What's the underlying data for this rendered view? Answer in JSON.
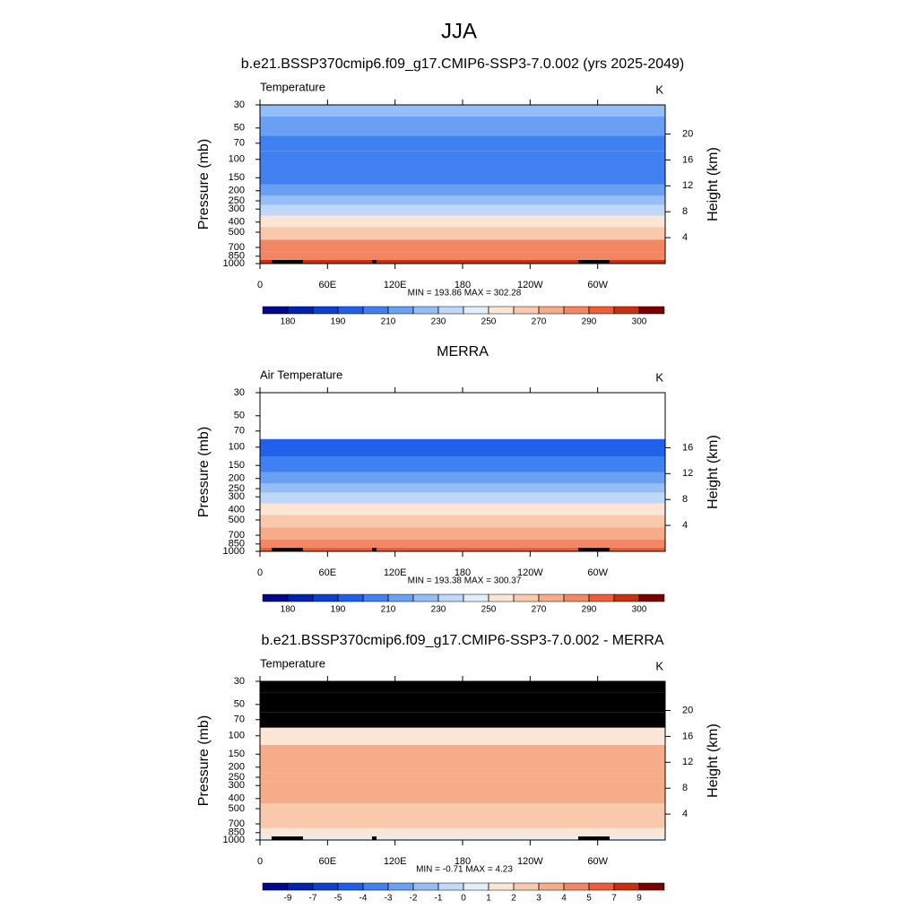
{
  "title": "JJA",
  "chart_data": [
    {
      "type": "contour",
      "title": "b.e21.BSSP370cmip6.f09_g17.CMIP6-SSP3-7.0.002 (yrs 2025-2049)",
      "left_label": "Temperature",
      "unit_label": "K",
      "y_label": "Pressure (mb)",
      "y2_label": "Height (km)",
      "log_scale": true,
      "ylim": [
        30,
        1000
      ],
      "yticks": [
        30,
        50,
        70,
        100,
        150,
        200,
        250,
        300,
        400,
        500,
        700,
        850,
        1000
      ],
      "y2lim": [
        0,
        24.5
      ],
      "y2ticks": [
        4,
        8,
        12,
        16,
        20
      ],
      "xlim": [
        0,
        360
      ],
      "xticks": [
        0,
        {
          "value": 60,
          "label": "60E"
        },
        {
          "value": 120,
          "label": "120E"
        },
        180,
        {
          "value": 240,
          "label": "120W"
        },
        {
          "value": 300,
          "label": "60W"
        }
      ],
      "stats_label": "MIN = 193.86  MAX = 302.28",
      "missing_color": "#ffffff",
      "pressure": [
        30,
        50,
        70,
        100,
        150,
        200,
        250,
        300,
        400,
        500,
        700,
        850,
        1000
      ],
      "values": [
        225,
        215,
        205,
        200,
        208,
        218,
        227,
        237,
        252,
        263,
        280,
        288,
        296
      ],
      "levels": [
        180,
        185,
        190,
        200,
        210,
        220,
        230,
        240,
        250,
        260,
        270,
        280,
        290,
        295,
        300
      ],
      "cbticks": [
        180,
        190,
        210,
        230,
        250,
        270,
        290,
        300
      ],
      "colors": [
        "#00078f",
        "#0022b0",
        "#0b40d0",
        "#2060ea",
        "#4080f0",
        "#6aa0f4",
        "#95bdf6",
        "#bfd8f9",
        "#e4eefb",
        "#fbe6d6",
        "#f9c9ad",
        "#f6ab89",
        "#f38764",
        "#ee5d38",
        "#c8300f",
        "#7a0000"
      ]
    },
    {
      "type": "contour",
      "title": "MERRA",
      "left_label": "Air Temperature",
      "unit_label": "K",
      "y_label": "Pressure (mb)",
      "y2_label": "Height (km)",
      "log_scale": true,
      "ylim": [
        30,
        1000
      ],
      "yticks": [
        30,
        50,
        70,
        100,
        150,
        200,
        250,
        300,
        400,
        500,
        700,
        850,
        1000
      ],
      "y2lim": [
        0,
        24.5
      ],
      "y2ticks": [
        4,
        8,
        12,
        16
      ],
      "xlim": [
        0,
        360
      ],
      "xticks": [
        0,
        {
          "value": 60,
          "label": "60E"
        },
        {
          "value": 120,
          "label": "120E"
        },
        180,
        {
          "value": 240,
          "label": "120W"
        },
        {
          "value": 300,
          "label": "60W"
        }
      ],
      "stats_label": "MIN = 193.38  MAX = 300.37",
      "missing_color": "#ffffff",
      "pressure": [
        30,
        50,
        70,
        100,
        150,
        200,
        250,
        300,
        400,
        500,
        700,
        850,
        1000
      ],
      "values": [
        null,
        null,
        null,
        198,
        206,
        216,
        226,
        236,
        250,
        261,
        277,
        286,
        293
      ],
      "levels": [
        180,
        185,
        190,
        200,
        210,
        220,
        230,
        240,
        250,
        260,
        270,
        280,
        290,
        295,
        300
      ],
      "cbticks": [
        180,
        190,
        210,
        230,
        250,
        270,
        290,
        300
      ],
      "colors": [
        "#00078f",
        "#0022b0",
        "#0b40d0",
        "#2060ea",
        "#4080f0",
        "#6aa0f4",
        "#95bdf6",
        "#bfd8f9",
        "#e4eefb",
        "#fbe6d6",
        "#f9c9ad",
        "#f6ab89",
        "#f38764",
        "#ee5d38",
        "#c8300f",
        "#7a0000"
      ]
    },
    {
      "type": "contour",
      "title": "b.e21.BSSP370cmip6.f09_g17.CMIP6-SSP3-7.0.002 - MERRA",
      "left_label": "Temperature",
      "unit_label": "K",
      "y_label": "Pressure (mb)",
      "y2_label": "Height (km)",
      "log_scale": true,
      "ylim": [
        30,
        1000
      ],
      "yticks": [
        30,
        50,
        70,
        100,
        150,
        200,
        250,
        300,
        400,
        500,
        700,
        850,
        1000
      ],
      "y2lim": [
        0,
        24.5
      ],
      "y2ticks": [
        4,
        8,
        12,
        16,
        20
      ],
      "xlim": [
        0,
        360
      ],
      "xticks": [
        0,
        {
          "value": 60,
          "label": "60E"
        },
        {
          "value": 120,
          "label": "120E"
        },
        180,
        {
          "value": 240,
          "label": "120W"
        },
        {
          "value": 300,
          "label": "60W"
        }
      ],
      "stats_label": "MIN =  -0.71  MAX =   4.23",
      "missing_color": "#000000",
      "pressure": [
        30,
        50,
        70,
        100,
        150,
        200,
        250,
        300,
        400,
        500,
        700,
        850,
        1000
      ],
      "values": [
        null,
        null,
        null,
        1.5,
        3.2,
        3.3,
        3.1,
        3.2,
        3.5,
        2.8,
        2.5,
        1.5,
        0.5
      ],
      "levels": [
        -9,
        -7,
        -5,
        -4,
        -3,
        -2,
        -1,
        0,
        1,
        2,
        3,
        4,
        5,
        7,
        9
      ],
      "cbticks": [
        -9,
        -7,
        -5,
        -4,
        -3,
        -2,
        -1,
        0,
        1,
        2,
        3,
        4,
        5,
        7,
        9
      ],
      "colors": [
        "#00078f",
        "#0022b0",
        "#0b40d0",
        "#2060ea",
        "#4080f0",
        "#6aa0f4",
        "#95bdf6",
        "#bfd8f9",
        "#e4eefb",
        "#fbe6d6",
        "#f9c9ad",
        "#f6ab89",
        "#f38764",
        "#ee5d38",
        "#c8300f",
        "#7a0000"
      ]
    }
  ]
}
